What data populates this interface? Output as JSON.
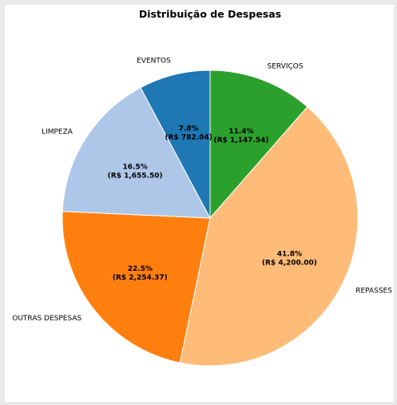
{
  "chart_data": {
    "type": "pie",
    "title": "Distribuição de Despesas",
    "slices": [
      {
        "label": "SERVIÇOS",
        "value": 1147.54,
        "percent_label": "11.4%",
        "amount_label": "(R$ 1,147.54)",
        "color": "#2ca02c"
      },
      {
        "label": "REPASSES",
        "value": 4200.0,
        "percent_label": "41.8%",
        "amount_label": "(R$ 4,200.00)",
        "color": "#ffbb78"
      },
      {
        "label": "OUTRAS DESPESAS",
        "value": 2254.37,
        "percent_label": "22.5%",
        "amount_label": "(R$ 2,254.37)",
        "color": "#ff7f0e"
      },
      {
        "label": "LIMPEZA",
        "value": 1655.5,
        "percent_label": "16.5%",
        "amount_label": "(R$ 1,655.50)",
        "color": "#aec7e8"
      },
      {
        "label": "EVENTOS",
        "value": 782.04,
        "percent_label": "7.8%",
        "amount_label": "(R$ 782.04)",
        "color": "#1f77b4"
      }
    ],
    "start_angle": "top",
    "direction": "clockwise",
    "edge_color": "#ffffff"
  }
}
